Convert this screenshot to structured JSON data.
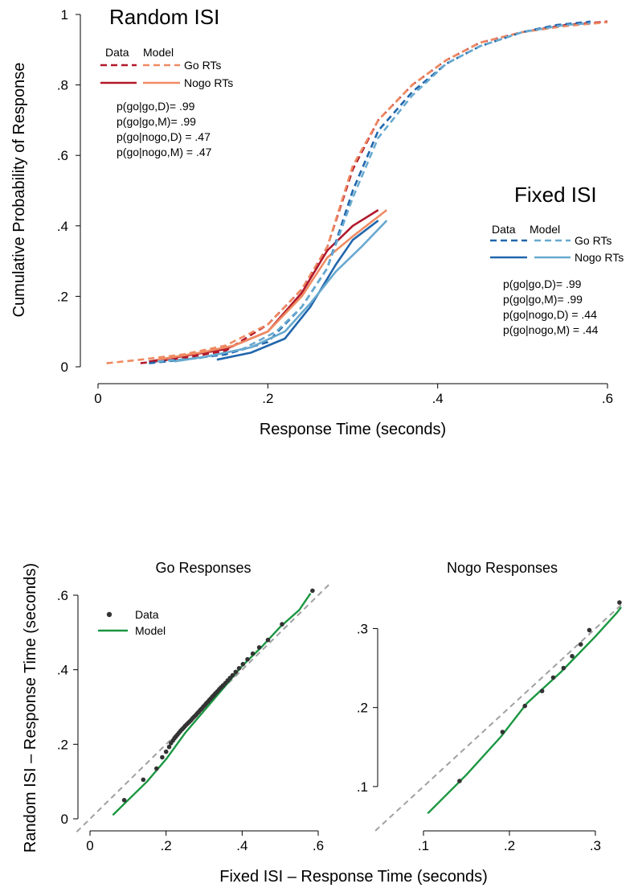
{
  "colors": {
    "random_data": "#b2182b",
    "random_model": "#ef8a62",
    "fixed_data": "#2166ac",
    "fixed_model": "#67a9cf",
    "qq_model": "#1a9641",
    "qq_point": "#333333",
    "identity": "#a0a0a0"
  },
  "chart_data": [
    {
      "type": "line",
      "xlabel": "Response Time (seconds)",
      "ylabel": "Cumulative Probability of Response",
      "xlim": [
        0,
        0.6
      ],
      "ylim": [
        0,
        1
      ],
      "x_ticks": [
        0,
        0.2,
        0.4,
        0.6
      ],
      "x_tick_labels": [
        "0",
        ".2",
        ".4",
        ".6"
      ],
      "y_ticks": [
        0,
        0.2,
        0.4,
        0.6,
        0.8,
        1
      ],
      "y_tick_labels": [
        "0",
        ".2",
        ".4",
        ".6",
        ".8",
        "1"
      ],
      "grid": false,
      "legends": [
        {
          "group": "random",
          "title": "Random ISI",
          "col_data": "Data",
          "col_model": "Model",
          "rows": [
            "Go RTs",
            "Nogo RTs"
          ],
          "stats": [
            "p(go|go,D)= .99",
            "p(go|go,M)= .99",
            "p(go|nogo,D) = .47",
            "p(go|nogo,M) = .47"
          ]
        },
        {
          "group": "fixed",
          "title": "Fixed ISI",
          "col_data": "Data",
          "col_model": "Model",
          "rows": [
            "Go RTs",
            "Nogo RTs"
          ],
          "stats": [
            "p(go|go,D)= .99",
            "p(go|go,M)= .99",
            "p(go|nogo,D) = .44",
            "p(go|nogo,M) = .44"
          ]
        }
      ],
      "series": [
        {
          "group": "random",
          "kind": "data",
          "cond": "go",
          "dash": true,
          "points": [
            [
              0.05,
              0.01
            ],
            [
              0.1,
              0.025
            ],
            [
              0.15,
              0.045
            ],
            [
              0.2,
              0.12
            ],
            [
              0.24,
              0.22
            ],
            [
              0.27,
              0.34
            ],
            [
              0.3,
              0.56
            ],
            [
              0.33,
              0.7
            ],
            [
              0.37,
              0.8
            ],
            [
              0.41,
              0.87
            ],
            [
              0.45,
              0.92
            ],
            [
              0.5,
              0.95
            ],
            [
              0.55,
              0.97
            ],
            [
              0.6,
              0.98
            ]
          ]
        },
        {
          "group": "random",
          "kind": "model",
          "cond": "go",
          "dash": true,
          "points": [
            [
              0.01,
              0.01
            ],
            [
              0.05,
              0.02
            ],
            [
              0.1,
              0.035
            ],
            [
              0.15,
              0.06
            ],
            [
              0.2,
              0.12
            ],
            [
              0.24,
              0.22
            ],
            [
              0.27,
              0.34
            ],
            [
              0.3,
              0.57
            ],
            [
              0.33,
              0.7
            ],
            [
              0.37,
              0.8
            ],
            [
              0.41,
              0.87
            ],
            [
              0.45,
              0.92
            ],
            [
              0.5,
              0.95
            ],
            [
              0.55,
              0.967
            ],
            [
              0.6,
              0.978
            ]
          ]
        },
        {
          "group": "random",
          "kind": "data",
          "cond": "nogo",
          "dash": false,
          "points": [
            [
              0.06,
              0.015
            ],
            [
              0.1,
              0.03
            ],
            [
              0.15,
              0.05
            ],
            [
              0.2,
              0.1
            ],
            [
              0.24,
              0.21
            ],
            [
              0.27,
              0.33
            ],
            [
              0.3,
              0.4
            ],
            [
              0.33,
              0.445
            ]
          ]
        },
        {
          "group": "random",
          "kind": "model",
          "cond": "nogo",
          "dash": false,
          "points": [
            [
              0.07,
              0.02
            ],
            [
              0.12,
              0.04
            ],
            [
              0.16,
              0.06
            ],
            [
              0.2,
              0.1
            ],
            [
              0.24,
              0.2
            ],
            [
              0.27,
              0.31
            ],
            [
              0.3,
              0.37
            ],
            [
              0.34,
              0.445
            ]
          ]
        },
        {
          "group": "fixed",
          "kind": "data",
          "cond": "go",
          "dash": true,
          "points": [
            [
              0.06,
              0.01
            ],
            [
              0.1,
              0.02
            ],
            [
              0.15,
              0.035
            ],
            [
              0.2,
              0.07
            ],
            [
              0.24,
              0.17
            ],
            [
              0.27,
              0.28
            ],
            [
              0.3,
              0.5
            ],
            [
              0.33,
              0.67
            ],
            [
              0.37,
              0.78
            ],
            [
              0.41,
              0.86
            ],
            [
              0.45,
              0.91
            ],
            [
              0.5,
              0.95
            ],
            [
              0.54,
              0.97
            ],
            [
              0.58,
              0.98
            ]
          ]
        },
        {
          "group": "fixed",
          "kind": "model",
          "cond": "go",
          "dash": true,
          "points": [
            [
              0.07,
              0.015
            ],
            [
              0.12,
              0.025
            ],
            [
              0.17,
              0.05
            ],
            [
              0.21,
              0.1
            ],
            [
              0.24,
              0.17
            ],
            [
              0.27,
              0.28
            ],
            [
              0.3,
              0.48
            ],
            [
              0.33,
              0.65
            ],
            [
              0.37,
              0.77
            ],
            [
              0.41,
              0.86
            ],
            [
              0.45,
              0.91
            ],
            [
              0.5,
              0.95
            ],
            [
              0.55,
              0.97
            ],
            [
              0.58,
              0.975
            ]
          ]
        },
        {
          "group": "fixed",
          "kind": "data",
          "cond": "nogo",
          "dash": false,
          "points": [
            [
              0.14,
              0.02
            ],
            [
              0.18,
              0.04
            ],
            [
              0.22,
              0.08
            ],
            [
              0.25,
              0.17
            ],
            [
              0.28,
              0.29
            ],
            [
              0.3,
              0.36
            ],
            [
              0.33,
              0.415
            ]
          ]
        },
        {
          "group": "fixed",
          "kind": "model",
          "cond": "nogo",
          "dash": false,
          "points": [
            [
              0.09,
              0.015
            ],
            [
              0.13,
              0.03
            ],
            [
              0.18,
              0.055
            ],
            [
              0.22,
              0.1
            ],
            [
              0.25,
              0.18
            ],
            [
              0.28,
              0.27
            ],
            [
              0.31,
              0.34
            ],
            [
              0.34,
              0.415
            ]
          ]
        }
      ]
    },
    {
      "type": "scatter",
      "title": "Go Responses",
      "xlim": [
        0,
        0.6
      ],
      "ylim": [
        0,
        0.6
      ],
      "x_ticks": [
        0,
        0.2,
        0.4,
        0.6
      ],
      "x_tick_labels": [
        "0",
        ".2",
        ".4",
        ".6"
      ],
      "y_ticks": [
        0,
        0.2,
        0.4,
        0.6
      ],
      "y_tick_labels": [
        "0",
        ".2",
        ".4",
        ".6"
      ],
      "legend": [
        "Data",
        "Model"
      ],
      "points": [
        [
          0.09,
          0.05
        ],
        [
          0.14,
          0.105
        ],
        [
          0.175,
          0.135
        ],
        [
          0.19,
          0.165
        ],
        [
          0.2,
          0.18
        ],
        [
          0.208,
          0.193
        ],
        [
          0.213,
          0.203
        ],
        [
          0.218,
          0.21
        ],
        [
          0.222,
          0.216
        ],
        [
          0.226,
          0.221
        ],
        [
          0.23,
          0.226
        ],
        [
          0.234,
          0.231
        ],
        [
          0.238,
          0.236
        ],
        [
          0.242,
          0.24
        ],
        [
          0.246,
          0.244
        ],
        [
          0.25,
          0.249
        ],
        [
          0.254,
          0.253
        ],
        [
          0.258,
          0.257
        ],
        [
          0.262,
          0.261
        ],
        [
          0.266,
          0.265
        ],
        [
          0.27,
          0.27
        ],
        [
          0.274,
          0.274
        ],
        [
          0.278,
          0.278
        ],
        [
          0.282,
          0.283
        ],
        [
          0.286,
          0.287
        ],
        [
          0.29,
          0.292
        ],
        [
          0.294,
          0.296
        ],
        [
          0.298,
          0.301
        ],
        [
          0.302,
          0.305
        ],
        [
          0.306,
          0.31
        ],
        [
          0.31,
          0.314
        ],
        [
          0.314,
          0.319
        ],
        [
          0.318,
          0.323
        ],
        [
          0.322,
          0.328
        ],
        [
          0.326,
          0.332
        ],
        [
          0.33,
          0.337
        ],
        [
          0.335,
          0.342
        ],
        [
          0.34,
          0.348
        ],
        [
          0.345,
          0.353
        ],
        [
          0.35,
          0.358
        ],
        [
          0.356,
          0.364
        ],
        [
          0.362,
          0.371
        ],
        [
          0.368,
          0.378
        ],
        [
          0.375,
          0.385
        ],
        [
          0.383,
          0.394
        ],
        [
          0.392,
          0.404
        ],
        [
          0.402,
          0.415
        ],
        [
          0.414,
          0.428
        ],
        [
          0.428,
          0.443
        ],
        [
          0.445,
          0.46
        ],
        [
          0.468,
          0.48
        ],
        [
          0.505,
          0.522
        ],
        [
          0.585,
          0.612
        ]
      ],
      "model_line": [
        [
          0.06,
          0.01
        ],
        [
          0.1,
          0.05
        ],
        [
          0.15,
          0.1
        ],
        [
          0.2,
          0.16
        ],
        [
          0.25,
          0.23
        ],
        [
          0.3,
          0.29
        ],
        [
          0.35,
          0.35
        ],
        [
          0.4,
          0.41
        ],
        [
          0.45,
          0.46
        ],
        [
          0.5,
          0.515
        ],
        [
          0.55,
          0.56
        ],
        [
          0.58,
          0.605
        ]
      ]
    },
    {
      "type": "scatter",
      "title": "Nogo Responses",
      "xlim": [
        0.1,
        0.33
      ],
      "ylim": [
        0.05,
        0.33
      ],
      "x_ticks": [
        0.1,
        0.2,
        0.3
      ],
      "x_tick_labels": [
        ".1",
        ".2",
        ".3"
      ],
      "y_ticks": [
        0.1,
        0.2,
        0.3
      ],
      "y_tick_labels": [
        ".1",
        ".2",
        ".3"
      ],
      "points": [
        [
          0.142,
          0.107
        ],
        [
          0.192,
          0.169
        ],
        [
          0.218,
          0.202
        ],
        [
          0.238,
          0.221
        ],
        [
          0.251,
          0.238
        ],
        [
          0.263,
          0.25
        ],
        [
          0.273,
          0.265
        ],
        [
          0.283,
          0.28
        ],
        [
          0.293,
          0.298
        ],
        [
          0.328,
          0.333
        ]
      ],
      "model_line": [
        [
          0.105,
          0.066
        ],
        [
          0.15,
          0.115
        ],
        [
          0.19,
          0.163
        ],
        [
          0.22,
          0.205
        ],
        [
          0.26,
          0.245
        ],
        [
          0.3,
          0.29
        ],
        [
          0.325,
          0.32
        ],
        [
          0.33,
          0.327
        ]
      ]
    }
  ],
  "qq_xlabel": "Fixed ISI – Response Time (seconds)",
  "qq_ylabel": "Random ISI – Response Time (seconds)"
}
